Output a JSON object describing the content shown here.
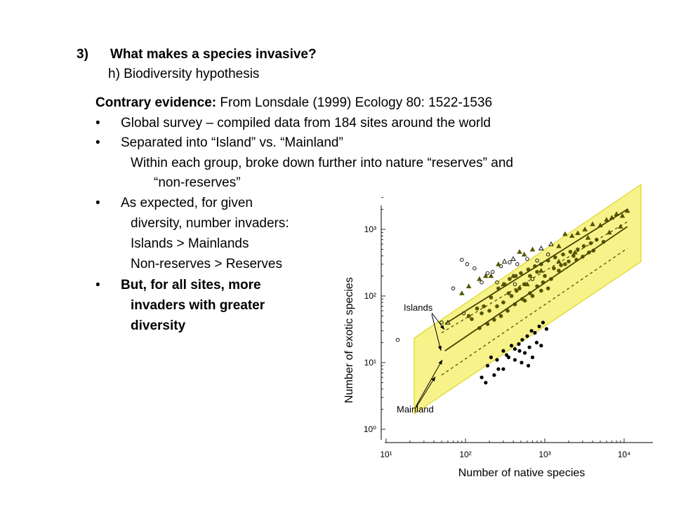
{
  "slide": {
    "heading_num": "3)",
    "heading": "What makes a species invasive?",
    "subheading": "h) Biodiversity hypothesis",
    "contrary_bold": "Contrary evidence:",
    "contrary_rest": " From Lonsdale (1999) Ecology 80: 1522-1536",
    "bullet_char": "•",
    "bullets": [
      "Global survey – compiled data from 184 sites around the world",
      "Separated into “Island” vs. “Mainland”",
      "As expected, for given",
      "But, for all sites, more"
    ],
    "sub_lines": [
      "Within each group, broke down further into nature “reserves” and",
      "“non-reserves”",
      "diversity, number invaders:",
      "Islands > Mainlands",
      "Non-reserves > Reserves",
      "invaders with greater",
      "diversity"
    ]
  },
  "chart_data": {
    "type": "scatter",
    "xlabel": "Number of native species",
    "ylabel": "Number of exotic species",
    "xscale": "log",
    "yscale": "log",
    "xlim": [
      10,
      15000
    ],
    "ylim": [
      0.8,
      3000
    ],
    "x_ticks": [
      {
        "value": 10,
        "label": "10¹"
      },
      {
        "value": 100,
        "label": "10²"
      },
      {
        "value": 1000,
        "label": "10³"
      },
      {
        "value": 10000,
        "label": "10⁴"
      }
    ],
    "y_ticks": [
      {
        "value": 1,
        "label": "10⁰"
      },
      {
        "value": 10,
        "label": "10¹"
      },
      {
        "value": 100,
        "label": "10²"
      },
      {
        "value": 1000,
        "label": "10³"
      }
    ],
    "annotations": [
      "Islands",
      "Mainland"
    ],
    "highlight_color": "#f7f38a",
    "highlight_edge": "#e3dc3e",
    "marker_color": "#555500",
    "series": [
      {
        "marker": "island-reserve",
        "points": [
          [
            90,
            350
          ],
          [
            105,
            300
          ],
          [
            70,
            130
          ],
          [
            160,
            160
          ],
          [
            190,
            220
          ],
          [
            220,
            230
          ],
          [
            130,
            260
          ],
          [
            280,
            280
          ],
          [
            360,
            320
          ],
          [
            450,
            300
          ],
          [
            600,
            360
          ],
          [
            800,
            340
          ],
          [
            1100,
            420
          ],
          [
            420,
            150
          ],
          [
            700,
            180
          ],
          [
            250,
            160
          ],
          [
            14,
            22
          ],
          [
            50,
            40
          ],
          [
            95,
            55
          ]
        ]
      },
      {
        "marker": "island-nonreserve",
        "points": [
          [
            60,
            40
          ],
          [
            90,
            110
          ],
          [
            110,
            140
          ],
          [
            150,
            180
          ],
          [
            180,
            200
          ],
          [
            210,
            200
          ],
          [
            260,
            300
          ],
          [
            310,
            330
          ],
          [
            400,
            360
          ],
          [
            480,
            460
          ],
          [
            550,
            420
          ],
          [
            700,
            500
          ],
          [
            900,
            520
          ],
          [
            1200,
            600
          ],
          [
            1500,
            560
          ],
          [
            1800,
            850
          ],
          [
            2200,
            800
          ],
          [
            2600,
            880
          ],
          [
            3200,
            1000
          ],
          [
            4000,
            1200
          ],
          [
            5000,
            1150
          ],
          [
            6000,
            1400
          ],
          [
            8000,
            1700
          ],
          [
            9500,
            1600
          ],
          [
            11000,
            1900
          ],
          [
            3500,
            750
          ],
          [
            2400,
            450
          ],
          [
            1500,
            330
          ],
          [
            900,
            240
          ],
          [
            600,
            150
          ],
          [
            6500,
            900
          ],
          [
            9000,
            1100
          ],
          [
            7000,
            1500
          ],
          [
            400,
            200
          ],
          [
            300,
            150
          ]
        ]
      },
      {
        "marker": "mainland-nonreserve",
        "points": [
          [
            110,
            50
          ],
          [
            140,
            65
          ],
          [
            170,
            70
          ],
          [
            210,
            95
          ],
          [
            260,
            130
          ],
          [
            310,
            150
          ],
          [
            360,
            180
          ],
          [
            430,
            200
          ],
          [
            500,
            220
          ],
          [
            620,
            250
          ],
          [
            750,
            280
          ],
          [
            900,
            300
          ],
          [
            1100,
            340
          ],
          [
            1350,
            380
          ],
          [
            1700,
            420
          ],
          [
            2100,
            460
          ],
          [
            2600,
            500
          ],
          [
            3100,
            560
          ],
          [
            3800,
            620
          ],
          [
            4500,
            700
          ],
          [
            5500,
            650
          ],
          [
            1500,
            240
          ],
          [
            1200,
            180
          ],
          [
            950,
            160
          ],
          [
            800,
            140
          ],
          [
            650,
            110
          ],
          [
            520,
            90
          ],
          [
            420,
            75
          ],
          [
            340,
            60
          ],
          [
            280,
            50
          ],
          [
            230,
            44
          ],
          [
            190,
            38
          ],
          [
            150,
            33
          ],
          [
            650,
            200
          ],
          [
            800,
            230
          ],
          [
            1000,
            200
          ],
          [
            1300,
            260
          ],
          [
            1600,
            290
          ],
          [
            2000,
            330
          ],
          [
            2500,
            350
          ],
          [
            3000,
            390
          ],
          [
            3600,
            450
          ],
          [
            900,
            120
          ],
          [
            700,
            100
          ],
          [
            560,
            85
          ],
          [
            1100,
            130
          ],
          [
            350,
            110
          ],
          [
            440,
            120
          ],
          [
            550,
            150
          ],
          [
            300,
            80
          ],
          [
            250,
            70
          ],
          [
            200,
            60
          ],
          [
            1800,
            300
          ],
          [
            2300,
            400
          ],
          [
            4100,
            480
          ],
          [
            120,
            45
          ],
          [
            160,
            55
          ],
          [
            380,
            100
          ],
          [
            480,
            130
          ]
        ]
      },
      {
        "marker": "mainland-reserve",
        "points": [
          [
            160,
            6
          ],
          [
            190,
            9
          ],
          [
            210,
            12
          ],
          [
            250,
            11
          ],
          [
            300,
            15
          ],
          [
            330,
            13
          ],
          [
            380,
            18
          ],
          [
            420,
            16
          ],
          [
            470,
            19
          ],
          [
            520,
            22
          ],
          [
            600,
            25
          ],
          [
            680,
            30
          ],
          [
            750,
            28
          ],
          [
            850,
            35
          ],
          [
            950,
            40
          ],
          [
            300,
            8
          ],
          [
            420,
            11
          ],
          [
            560,
            14
          ],
          [
            700,
            12
          ],
          [
            900,
            18
          ],
          [
            180,
            5
          ],
          [
            230,
            6.5
          ],
          [
            260,
            8
          ],
          [
            350,
            12
          ],
          [
            480,
            15
          ],
          [
            640,
            17
          ],
          [
            790,
            20
          ],
          [
            1050,
            32
          ],
          [
            620,
            9
          ],
          [
            510,
            10
          ]
        ]
      }
    ]
  }
}
